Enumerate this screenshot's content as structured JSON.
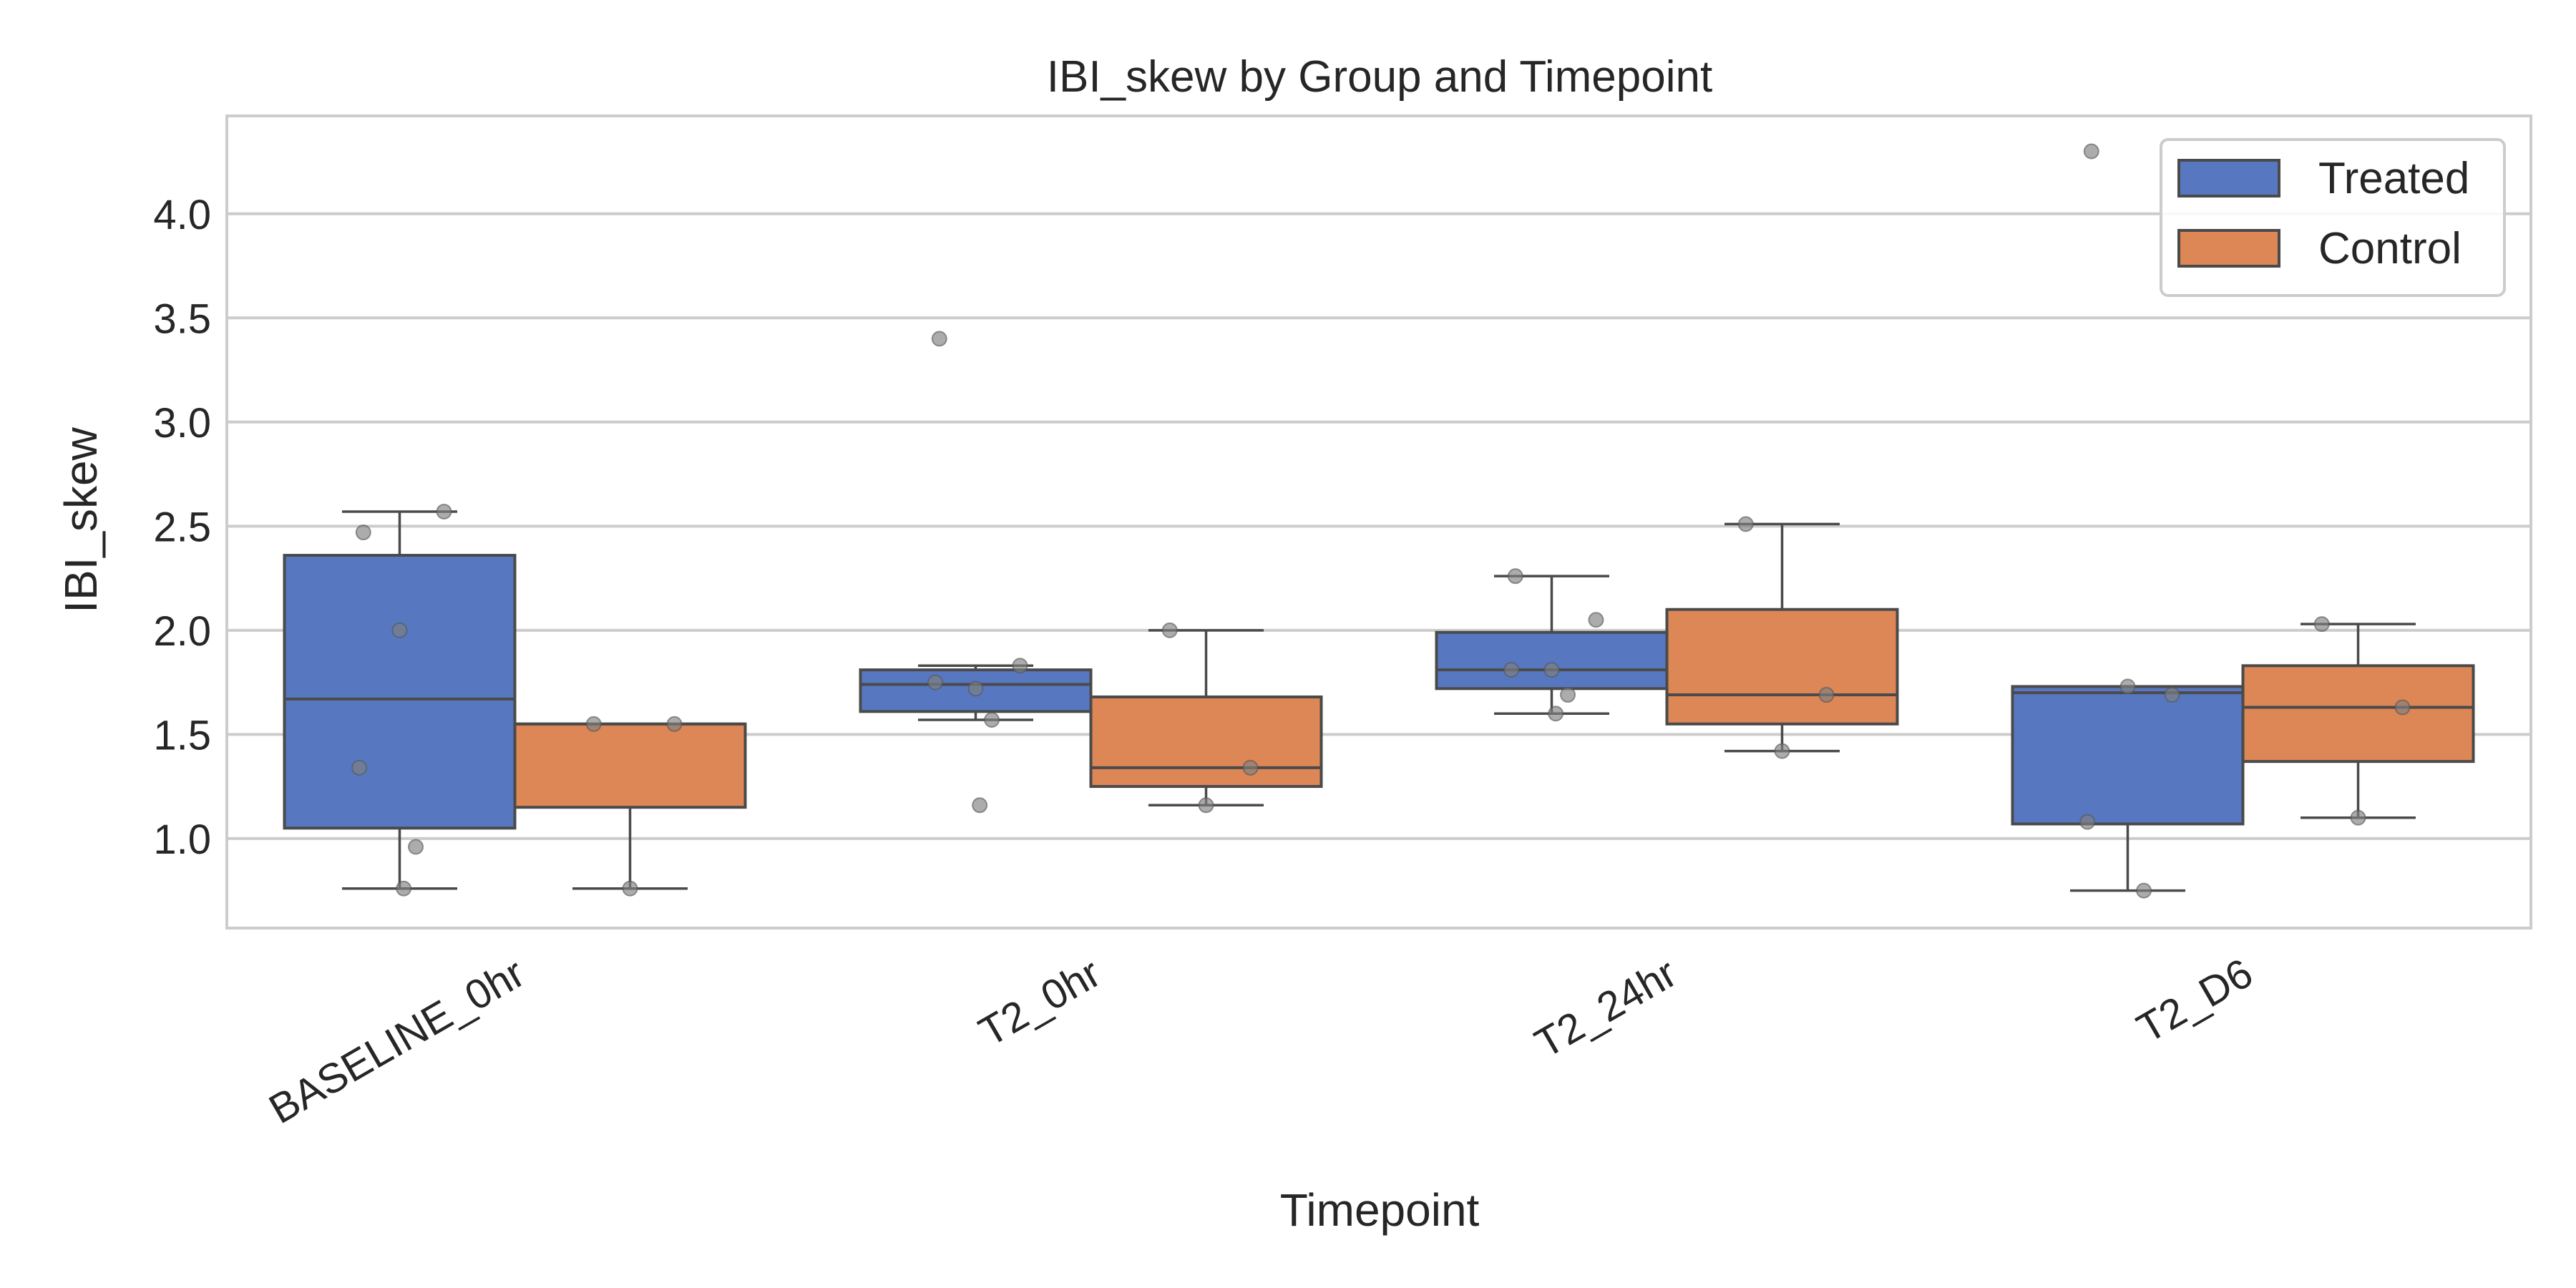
{
  "chart_data": {
    "type": "box",
    "title": "IBI_skew by Group and Timepoint",
    "xlabel": "Timepoint",
    "ylabel": "IBI_skew",
    "categories": [
      "BASELINE_0hr",
      "T2_0hr",
      "T2_24hr",
      "T2_D6"
    ],
    "ylim": [
      0.57,
      4.47
    ],
    "yticks": [
      1.0,
      1.5,
      2.0,
      2.5,
      3.0,
      3.5,
      4.0
    ],
    "ytick_labels": [
      "1.0",
      "1.5",
      "2.0",
      "2.5",
      "3.0",
      "3.5",
      "4.0"
    ],
    "grid": true,
    "legend_position": "top-right",
    "colors": {
      "Treated": "#5778c1",
      "Control": "#dd8656",
      "edge": "#4a4a4a",
      "point": "#808080",
      "grid": "#cccccc",
      "frame": "#cccccc"
    },
    "series": [
      {
        "name": "Treated",
        "boxes": [
          {
            "category": "BASELINE_0hr",
            "whisker_low": 0.76,
            "q1": 1.05,
            "median": 1.67,
            "q3": 2.36,
            "whisker_high": 2.57
          },
          {
            "category": "T2_0hr",
            "whisker_low": 1.57,
            "q1": 1.61,
            "median": 1.74,
            "q3": 1.81,
            "whisker_high": 1.83
          },
          {
            "category": "T2_24hr",
            "whisker_low": 1.6,
            "q1": 1.72,
            "median": 1.81,
            "q3": 1.99,
            "whisker_high": 2.26
          },
          {
            "category": "T2_D6",
            "whisker_low": 0.75,
            "q1": 1.07,
            "median": 1.7,
            "q3": 1.73,
            "whisker_high": 1.73
          }
        ],
        "points": [
          {
            "category": "BASELINE_0hr",
            "values": [
              2.47,
              2.57,
              2.0,
              1.34,
              0.96,
              0.76
            ]
          },
          {
            "category": "T2_0hr",
            "values": [
              3.4,
              1.83,
              1.72,
              1.75,
              1.57,
              1.16
            ]
          },
          {
            "category": "T2_24hr",
            "values": [
              2.26,
              2.05,
              1.81,
              1.81,
              1.69,
              1.6
            ]
          },
          {
            "category": "T2_D6",
            "values": [
              4.3,
              1.69,
              1.73,
              1.08,
              0.75
            ]
          }
        ]
      },
      {
        "name": "Control",
        "boxes": [
          {
            "category": "BASELINE_0hr",
            "whisker_low": 0.76,
            "q1": 1.15,
            "median": 1.55,
            "q3": 1.55,
            "whisker_high": 1.55
          },
          {
            "category": "T2_0hr",
            "whisker_low": 1.16,
            "q1": 1.25,
            "median": 1.34,
            "q3": 1.68,
            "whisker_high": 2.0
          },
          {
            "category": "T2_24hr",
            "whisker_low": 1.42,
            "q1": 1.55,
            "median": 1.69,
            "q3": 2.1,
            "whisker_high": 2.51
          },
          {
            "category": "T2_D6",
            "whisker_low": 1.1,
            "q1": 1.37,
            "median": 1.63,
            "q3": 1.83,
            "whisker_high": 2.03
          }
        ],
        "points": [
          {
            "category": "BASELINE_0hr",
            "values": [
              1.55,
              1.55,
              0.76
            ]
          },
          {
            "category": "T2_0hr",
            "values": [
              2.0,
              1.34,
              1.16
            ]
          },
          {
            "category": "T2_24hr",
            "values": [
              2.51,
              1.69,
              1.42
            ]
          },
          {
            "category": "T2_D6",
            "values": [
              2.03,
              1.63,
              1.1
            ]
          }
        ]
      }
    ]
  }
}
